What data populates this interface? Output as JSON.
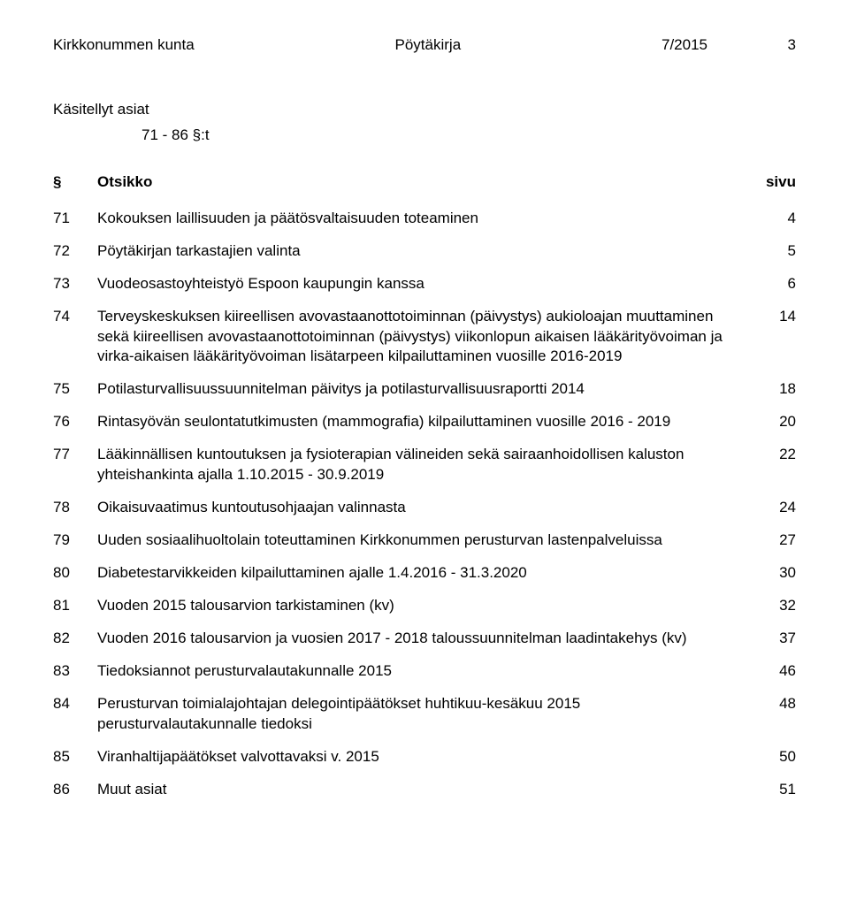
{
  "header": {
    "left": "Kirkkonummen kunta",
    "center": "Pöytäkirja",
    "right_doc": "7/2015",
    "right_page": "3"
  },
  "section": {
    "heading": "Käsitellyt asiat",
    "subheading": "71 - 86 §:t"
  },
  "table_header": {
    "num": "§",
    "title": "Otsikko",
    "page": "sivu"
  },
  "toc": [
    {
      "num": "71",
      "title": "Kokouksen laillisuuden ja päätösvaltaisuuden toteaminen",
      "page": "4"
    },
    {
      "num": "72",
      "title": "Pöytäkirjan tarkastajien valinta",
      "page": "5"
    },
    {
      "num": "73",
      "title": "Vuodeosastoyhteistyö Espoon kaupungin kanssa",
      "page": "6"
    },
    {
      "num": "74",
      "title": "Terveyskeskuksen kiireellisen avovastaanottotoiminnan (päivystys) aukioloajan muuttaminen sekä kiireellisen avovastaanottotoiminnan (päivystys) viikonlopun aikaisen lääkärityövoiman ja virka-aikaisen lääkärityövoiman lisätarpeen kilpailuttaminen vuosille 2016-2019",
      "page": "14"
    },
    {
      "num": "75",
      "title": "Potilasturvallisuussuunnitelman päivitys ja potilasturvallisuusraportti 2014",
      "page": "18"
    },
    {
      "num": "76",
      "title": "Rintasyövän seulontatutkimusten (mammografia) kilpailuttaminen vuosille 2016 - 2019",
      "page": "20"
    },
    {
      "num": "77",
      "title": "Lääkinnällisen kuntoutuksen ja fysioterapian välineiden sekä sairaanhoidollisen kaluston yhteishankinta ajalla 1.10.2015 - 30.9.2019",
      "page": "22"
    },
    {
      "num": "78",
      "title": "Oikaisuvaatimus kuntoutusohjaajan valinnasta",
      "page": "24"
    },
    {
      "num": "79",
      "title": "Uuden sosiaalihuoltolain toteuttaminen Kirkkonummen perusturvan lastenpalveluissa",
      "page": "27"
    },
    {
      "num": "80",
      "title": "Diabetestarvikkeiden kilpailuttaminen ajalle 1.4.2016 - 31.3.2020",
      "page": "30"
    },
    {
      "num": "81",
      "title": "Vuoden 2015 talousarvion tarkistaminen (kv)",
      "page": "32"
    },
    {
      "num": "82",
      "title": "Vuoden 2016 talousarvion ja vuosien 2017 - 2018 taloussuunnitelman laadintakehys (kv)",
      "page": "37"
    },
    {
      "num": "83",
      "title": "Tiedoksiannot perusturvalautakunnalle 2015",
      "page": "46"
    },
    {
      "num": "84",
      "title": "Perusturvan toimialajohtajan delegointipäätökset huhtikuu-kesäkuu 2015 perusturvalautakunnalle tiedoksi",
      "page": "48"
    },
    {
      "num": "85",
      "title": "Viranhaltijapäätökset valvottavaksi v. 2015",
      "page": "50"
    },
    {
      "num": "86",
      "title": "Muut asiat",
      "page": "51"
    }
  ]
}
